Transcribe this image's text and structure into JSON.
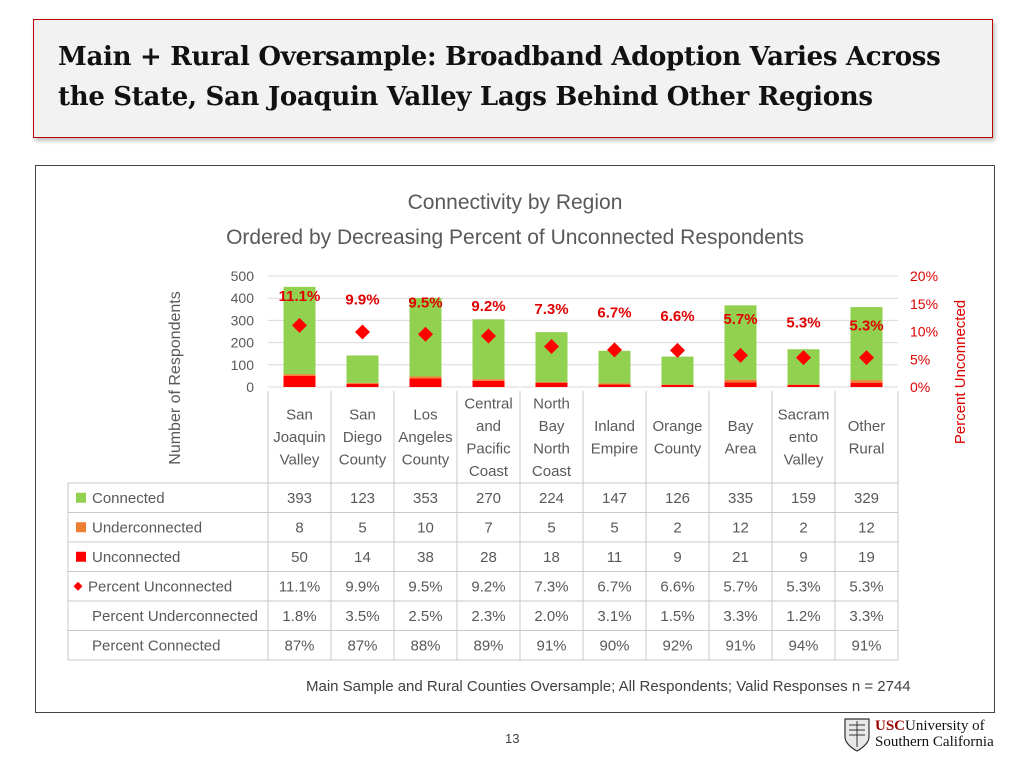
{
  "slide": {
    "title": "Main + Rural Oversample: Broadband Adoption Varies Across the State, San Joaquin Valley Lags Behind Other Regions",
    "page_number": "13",
    "logo": {
      "usc": "USC",
      "line1_rest": "University of",
      "line2": "Southern California"
    }
  },
  "colors": {
    "connected": "#92d050",
    "underconnected": "#ed7d31",
    "unconnected": "#ff0000",
    "percent_marker": "#ff0000",
    "label_red": "#e00000",
    "axis_text": "#595959",
    "grid": "#d9d9d9"
  },
  "chart_data": {
    "type": "bar",
    "title": "Connectivity by Region",
    "subtitle": "Ordered by Decreasing Percent of Unconnected Respondents",
    "ylabel": "Number of Respondents",
    "y2label": "Percent Unconnected",
    "ylim": [
      0,
      500
    ],
    "y_ticks": [
      "0",
      "100",
      "200",
      "300",
      "400",
      "500"
    ],
    "y2lim": [
      0,
      20
    ],
    "y2_ticks": [
      "0%",
      "5%",
      "10%",
      "15%",
      "20%"
    ],
    "categories": [
      [
        "San",
        "Joaquin",
        "Valley"
      ],
      [
        "San",
        "Diego",
        "County"
      ],
      [
        "Los",
        "Angeles",
        "County"
      ],
      [
        "Central",
        "and",
        "Pacific",
        "Coast"
      ],
      [
        "North",
        "Bay",
        "North",
        "Coast"
      ],
      [
        "Inland",
        "Empire"
      ],
      [
        "Orange",
        "County"
      ],
      [
        "Bay",
        "Area"
      ],
      [
        "Sacram",
        "ento",
        "Valley"
      ],
      [
        "Other",
        "Rural"
      ]
    ],
    "series": [
      {
        "name": "Unconnected",
        "key": "unconnected",
        "values": [
          50,
          14,
          38,
          28,
          18,
          11,
          9,
          21,
          9,
          19
        ]
      },
      {
        "name": "Underconnected",
        "key": "underconnected",
        "values": [
          8,
          5,
          10,
          7,
          5,
          5,
          2,
          12,
          2,
          12
        ]
      },
      {
        "name": "Connected",
        "key": "connected",
        "values": [
          393,
          123,
          353,
          270,
          224,
          147,
          126,
          335,
          159,
          329
        ]
      }
    ],
    "percent_unconnected": {
      "name": "Percent Unconnected",
      "values": [
        11.1,
        9.9,
        9.5,
        9.2,
        7.3,
        6.7,
        6.6,
        5.7,
        5.3,
        5.3
      ],
      "labels": [
        "11.1%",
        "9.9%",
        "9.5%",
        "9.2%",
        "7.3%",
        "6.7%",
        "6.6%",
        "5.7%",
        "5.3%",
        "5.3%"
      ]
    },
    "table": {
      "rows": [
        {
          "label": "Connected",
          "legend": "connected",
          "cells": [
            "393",
            "123",
            "353",
            "270",
            "224",
            "147",
            "126",
            "335",
            "159",
            "329"
          ]
        },
        {
          "label": "Underconnected",
          "legend": "underconnected",
          "cells": [
            "8",
            "5",
            "10",
            "7",
            "5",
            "5",
            "2",
            "12",
            "2",
            "12"
          ]
        },
        {
          "label": "Unconnected",
          "legend": "unconnected",
          "cells": [
            "50",
            "14",
            "38",
            "28",
            "18",
            "11",
            "9",
            "21",
            "9",
            "19"
          ]
        },
        {
          "label": "Percent Unconnected",
          "legend": "diamond",
          "cells": [
            "11.1%",
            "9.9%",
            "9.5%",
            "9.2%",
            "7.3%",
            "6.7%",
            "6.6%",
            "5.7%",
            "5.3%",
            "5.3%"
          ]
        },
        {
          "label": "Percent Underconnected",
          "legend": "none",
          "cells": [
            "1.8%",
            "3.5%",
            "2.5%",
            "2.3%",
            "2.0%",
            "3.1%",
            "1.5%",
            "3.3%",
            "1.2%",
            "3.3%"
          ]
        },
        {
          "label": "Percent Connected",
          "legend": "none",
          "cells": [
            "87%",
            "87%",
            "88%",
            "89%",
            "91%",
            "90%",
            "92%",
            "91%",
            "94%",
            "91%"
          ]
        }
      ]
    },
    "footnote": "Main Sample and Rural Counties Oversample; All Respondents; Valid Responses n = 2744"
  }
}
